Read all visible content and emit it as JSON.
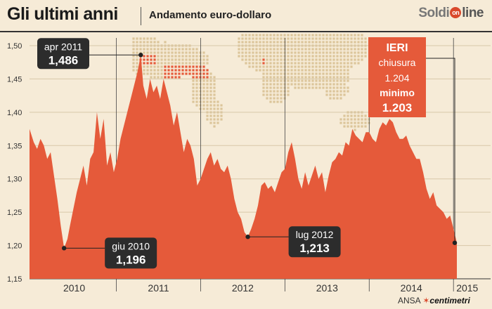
{
  "header": {
    "title": "Gli ultimi anni",
    "subtitle": "Andamento euro-dollaro",
    "brand_left": "Soldi",
    "brand_mark": "on",
    "brand_right": "line"
  },
  "credit": {
    "ansa": "ANSA",
    "mark": "✶",
    "centimetri": "centimetri"
  },
  "colors": {
    "area": "#e55a3a",
    "background": "#f6ebd7",
    "map": "#dcc59a",
    "map_highlight": "#e55a3a",
    "callout": "#2c2c2c"
  },
  "chart_data": {
    "type": "area",
    "ylim": [
      1.15,
      1.52
    ],
    "yticks": [
      "1,50",
      "1,45",
      "1,40",
      "1,35",
      "1,30",
      "1,25",
      "1,20",
      "1,15"
    ],
    "ytick_values": [
      1.5,
      1.45,
      1.4,
      1.35,
      1.3,
      1.25,
      1.2,
      1.15
    ],
    "year_labels": [
      "2010",
      "2011",
      "2012",
      "2013",
      "2014",
      "2015"
    ],
    "year_starts": [
      2010,
      2011,
      2012,
      2013,
      2014,
      2015
    ],
    "x": [
      2009.97,
      2010.02,
      2010.06,
      2010.1,
      2010.14,
      2010.18,
      2010.22,
      2010.26,
      2010.3,
      2010.34,
      2010.38,
      2010.42,
      2010.45,
      2010.49,
      2010.53,
      2010.57,
      2010.61,
      2010.65,
      2010.69,
      2010.73,
      2010.77,
      2010.81,
      2010.85,
      2010.89,
      2010.93,
      2010.97,
      2011.01,
      2011.05,
      2011.09,
      2011.13,
      2011.17,
      2011.21,
      2011.25,
      2011.29,
      2011.32,
      2011.36,
      2011.4,
      2011.44,
      2011.48,
      2011.52,
      2011.56,
      2011.6,
      2011.64,
      2011.68,
      2011.72,
      2011.76,
      2011.8,
      2011.84,
      2011.88,
      2011.92,
      2011.96,
      2012.0,
      2012.04,
      2012.08,
      2012.12,
      2012.16,
      2012.2,
      2012.24,
      2012.28,
      2012.32,
      2012.36,
      2012.4,
      2012.44,
      2012.48,
      2012.52,
      2012.56,
      2012.6,
      2012.64,
      2012.68,
      2012.72,
      2012.76,
      2012.8,
      2012.84,
      2012.88,
      2012.92,
      2012.96,
      2013.0,
      2013.04,
      2013.08,
      2013.12,
      2013.16,
      2013.2,
      2013.24,
      2013.28,
      2013.32,
      2013.36,
      2013.4,
      2013.44,
      2013.48,
      2013.52,
      2013.56,
      2013.6,
      2013.64,
      2013.68,
      2013.72,
      2013.76,
      2013.8,
      2013.84,
      2013.88,
      2013.92,
      2013.96,
      2014.0,
      2014.04,
      2014.08,
      2014.12,
      2014.16,
      2014.2,
      2014.24,
      2014.28,
      2014.32,
      2014.36,
      2014.4,
      2014.44,
      2014.48,
      2014.52,
      2014.56,
      2014.6,
      2014.64,
      2014.68,
      2014.72,
      2014.76,
      2014.8,
      2014.84,
      2014.88,
      2014.92,
      2014.96,
      2015.0,
      2015.04
    ],
    "y": [
      1.375,
      1.355,
      1.345,
      1.36,
      1.35,
      1.33,
      1.34,
      1.305,
      1.27,
      1.23,
      1.196,
      1.21,
      1.23,
      1.255,
      1.28,
      1.3,
      1.32,
      1.29,
      1.33,
      1.34,
      1.4,
      1.36,
      1.39,
      1.32,
      1.34,
      1.31,
      1.33,
      1.36,
      1.38,
      1.4,
      1.42,
      1.44,
      1.46,
      1.486,
      1.44,
      1.42,
      1.45,
      1.43,
      1.44,
      1.42,
      1.45,
      1.43,
      1.41,
      1.38,
      1.4,
      1.37,
      1.34,
      1.36,
      1.35,
      1.33,
      1.29,
      1.3,
      1.315,
      1.33,
      1.34,
      1.32,
      1.33,
      1.315,
      1.31,
      1.32,
      1.3,
      1.27,
      1.25,
      1.24,
      1.22,
      1.213,
      1.225,
      1.24,
      1.26,
      1.29,
      1.295,
      1.285,
      1.29,
      1.28,
      1.295,
      1.31,
      1.315,
      1.34,
      1.355,
      1.33,
      1.3,
      1.285,
      1.31,
      1.29,
      1.305,
      1.32,
      1.3,
      1.31,
      1.28,
      1.305,
      1.325,
      1.33,
      1.34,
      1.335,
      1.355,
      1.35,
      1.375,
      1.365,
      1.36,
      1.355,
      1.37,
      1.37,
      1.36,
      1.355,
      1.375,
      1.385,
      1.38,
      1.39,
      1.385,
      1.37,
      1.36,
      1.36,
      1.365,
      1.35,
      1.34,
      1.33,
      1.33,
      1.31,
      1.285,
      1.27,
      1.28,
      1.26,
      1.255,
      1.25,
      1.24,
      1.245,
      1.225,
      1.204
    ],
    "callouts": [
      {
        "label": "apr 2011",
        "value": "1,486",
        "x": 2011.29,
        "y": 1.486,
        "side": "left"
      },
      {
        "label": "giu 2010",
        "value": "1,196",
        "x": 2010.38,
        "y": 1.196,
        "side": "right"
      },
      {
        "label": "lug 2012",
        "value": "1,213",
        "x": 2012.56,
        "y": 1.213,
        "side": "right"
      }
    ],
    "info_box": {
      "title": "IERI",
      "line1": "chiusura",
      "line2": "1.204",
      "line3": "minimo",
      "line4": "1.203",
      "x": 2015.04,
      "y": 1.204
    }
  }
}
